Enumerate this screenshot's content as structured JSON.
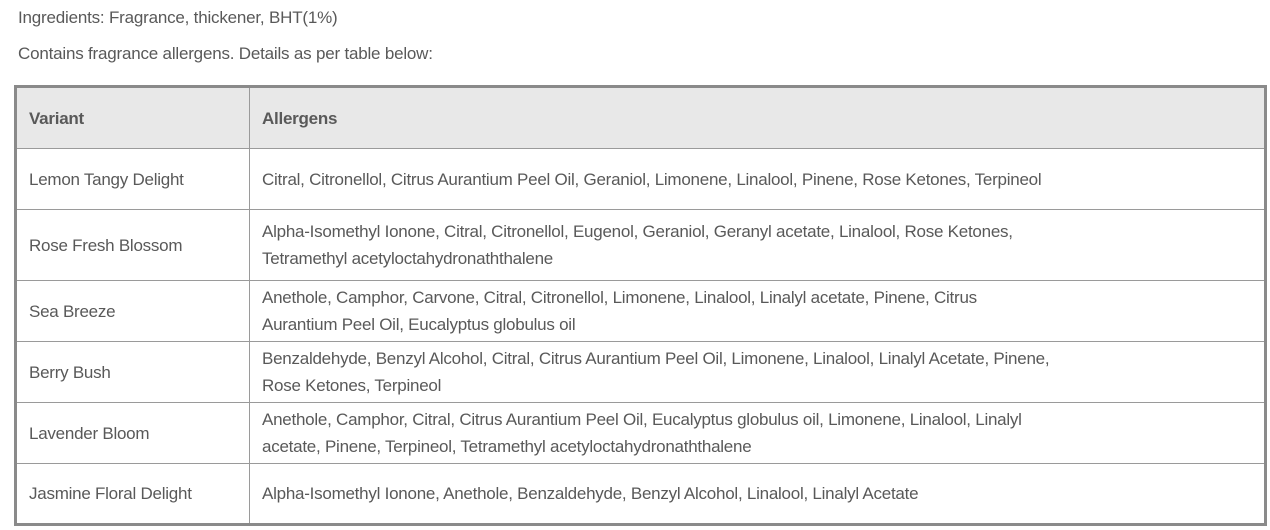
{
  "intro": {
    "ingredients": "Ingredients: Fragrance, thickener, BHT(1%)",
    "allergen_note": "Contains fragrance allergens. Details as per table below:"
  },
  "table": {
    "headers": [
      "Variant",
      "Allergens"
    ],
    "rows": [
      {
        "variant": "Lemon Tangy Delight",
        "allergens": [
          "Citral, Citronellol, Citrus Aurantium Peel Oil,  Geraniol, Limonene, Linalool, Pinene, Rose Ketones, Terpineol"
        ]
      },
      {
        "variant": "Rose Fresh Blossom",
        "allergens": [
          "Alpha-Isomethyl Ionone, Citral, Citronellol, Eugenol, Geraniol, Geranyl acetate, Linalool, Rose Ketones,",
          "Tetramethyl acetyloctahydronaththalene"
        ]
      },
      {
        "variant": "Sea Breeze",
        "allergens": [
          "Anethole, Camphor, Carvone, Citral, Citronellol,  Limonene, Linalool, Linalyl acetate, Pinene, Citrus",
          "Aurantium Peel Oil, Eucalyptus globulus oil"
        ]
      },
      {
        "variant": "Berry Bush",
        "allergens": [
          "Benzaldehyde, Benzyl Alcohol, Citral, Citrus Aurantium Peel Oil, Limonene, Linalool, Linalyl Acetate, Pinene,",
          "Rose Ketones, Terpineol"
        ]
      },
      {
        "variant": "Lavender Bloom",
        "allergens": [
          "Anethole, Camphor, Citral, Citrus Aurantium Peel Oil, Eucalyptus globulus oil, Limonene, Linalool, Linalyl",
          "acetate, Pinene, Terpineol, Tetramethyl acetyloctahydronaththalene"
        ]
      },
      {
        "variant": "Jasmine Floral Delight",
        "allergens": [
          "Alpha-Isomethyl Ionone, Anethole, Benzaldehyde, Benzyl Alcohol,  Linalool, Linalyl Acetate"
        ]
      }
    ]
  }
}
